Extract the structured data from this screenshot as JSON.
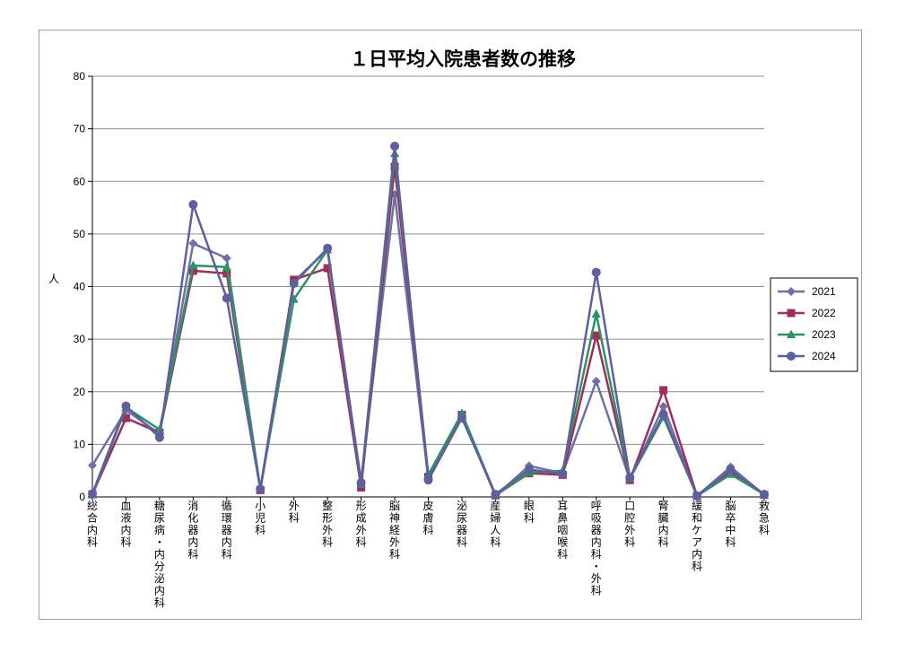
{
  "chart_data": {
    "type": "line",
    "title": "１日平均入院患者数の推移",
    "ylabel": "人",
    "xlabel": "",
    "ylim": [
      0,
      80
    ],
    "yticks": [
      0,
      10,
      20,
      30,
      40,
      50,
      60,
      70,
      80
    ],
    "grid": true,
    "legend_position": "right",
    "categories": [
      "総合内科",
      "血液内科",
      "糖尿病・内分泌内科",
      "消化器内科",
      "循環器内科",
      "小児科",
      "外科",
      "整形外科",
      "形成外科",
      "脳神経外科",
      "皮膚科",
      "泌尿器科",
      "産婦人科",
      "眼科",
      "耳鼻咽喉科",
      "呼吸器内科・外科",
      "口腔外科",
      "腎臓内科",
      "緩和ケア内科",
      "脳卒中科",
      "救急科"
    ],
    "series": [
      {
        "name": "2021",
        "color": "#7070a8",
        "marker": "diamond",
        "values": [
          6.0,
          16.5,
          12.0,
          48.2,
          45.4,
          1.5,
          41.0,
          47.0,
          3.0,
          57.5,
          3.5,
          15.5,
          0.2,
          5.9,
          4.5,
          22.0,
          3.3,
          17.2,
          0.2,
          5.7,
          0.4
        ]
      },
      {
        "name": "2022",
        "color": "#9b2f5e",
        "marker": "square",
        "values": [
          0.5,
          15.0,
          12.2,
          43.0,
          42.5,
          1.3,
          41.3,
          43.5,
          1.8,
          62.8,
          3.8,
          15.6,
          0.3,
          4.5,
          4.2,
          30.7,
          3.2,
          20.3,
          0.2,
          4.8,
          0.4
        ]
      },
      {
        "name": "2023",
        "color": "#2e9264",
        "marker": "triangle",
        "values": [
          0.4,
          17.0,
          12.8,
          44.0,
          43.7,
          1.5,
          37.6,
          47.0,
          2.4,
          65.3,
          4.2,
          15.9,
          0.4,
          4.6,
          5.0,
          34.8,
          3.5,
          15.2,
          0.2,
          4.3,
          0.5
        ]
      },
      {
        "name": "2024",
        "color": "#5f5f9f",
        "marker": "circle",
        "values": [
          0.6,
          17.3,
          11.3,
          55.6,
          37.8,
          1.5,
          40.6,
          47.3,
          2.7,
          66.7,
          3.2,
          15.0,
          0.5,
          5.2,
          4.4,
          42.7,
          3.7,
          15.7,
          0.2,
          5.2,
          0.5
        ]
      }
    ]
  }
}
